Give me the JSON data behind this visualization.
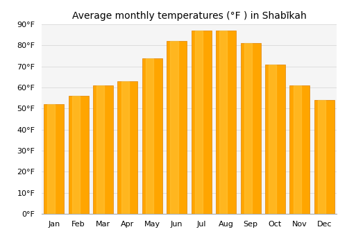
{
  "title": "Average monthly temperatures (°F ) in Shabīkah",
  "months": [
    "Jan",
    "Feb",
    "Mar",
    "Apr",
    "May",
    "Jun",
    "Jul",
    "Aug",
    "Sep",
    "Oct",
    "Nov",
    "Dec"
  ],
  "values": [
    52,
    56,
    61,
    63,
    74,
    82,
    87,
    87,
    81,
    71,
    61,
    54
  ],
  "bar_color_main": "#FFA500",
  "bar_color_edge": "#E08000",
  "ylim": [
    0,
    90
  ],
  "ytick_step": 10,
  "background_color": "#ffffff",
  "plot_bg_color": "#f5f5f5",
  "grid_color": "#dddddd",
  "title_fontsize": 10,
  "tick_fontsize": 8,
  "bar_width": 0.82
}
